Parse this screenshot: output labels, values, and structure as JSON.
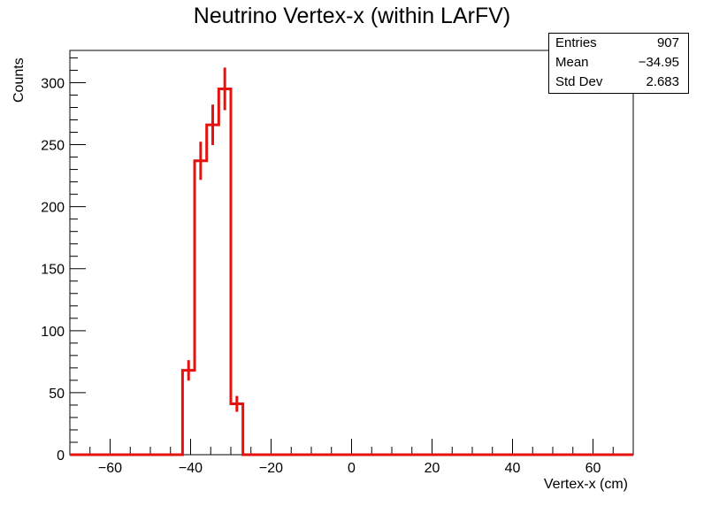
{
  "chart_data": {
    "type": "bar",
    "title": "Neutrino Vertex-x (within LArFV)",
    "xlabel": "Vertex-x (cm)",
    "ylabel": "Counts",
    "xlim": [
      -70,
      70
    ],
    "ylim": [
      0,
      326
    ],
    "x_ticks": [
      -60,
      -40,
      -20,
      0,
      20,
      40,
      60
    ],
    "x_tick_labels": [
      "−60",
      "−40",
      "−20",
      "0",
      "20",
      "40",
      "60"
    ],
    "y_ticks": [
      0,
      50,
      100,
      150,
      200,
      250,
      300
    ],
    "y_tick_labels": [
      "0",
      "50",
      "100",
      "150",
      "200",
      "250",
      "300"
    ],
    "bin_width": 3,
    "bins": [
      {
        "low": -42,
        "high": -39,
        "value": 68
      },
      {
        "low": -39,
        "high": -36,
        "value": 237
      },
      {
        "low": -36,
        "high": -33,
        "value": 266
      },
      {
        "low": -33,
        "high": -30,
        "value": 295
      },
      {
        "low": -30,
        "high": -27,
        "value": 41
      }
    ],
    "error_bars": true,
    "series_color": "#e6120e",
    "grid": false,
    "legend": "top-right"
  },
  "stats_box": {
    "rows": [
      {
        "label": "Entries",
        "value": "907"
      },
      {
        "label": "Mean",
        "value": "−34.95"
      },
      {
        "label": "Std Dev",
        "value": "2.683"
      }
    ]
  }
}
